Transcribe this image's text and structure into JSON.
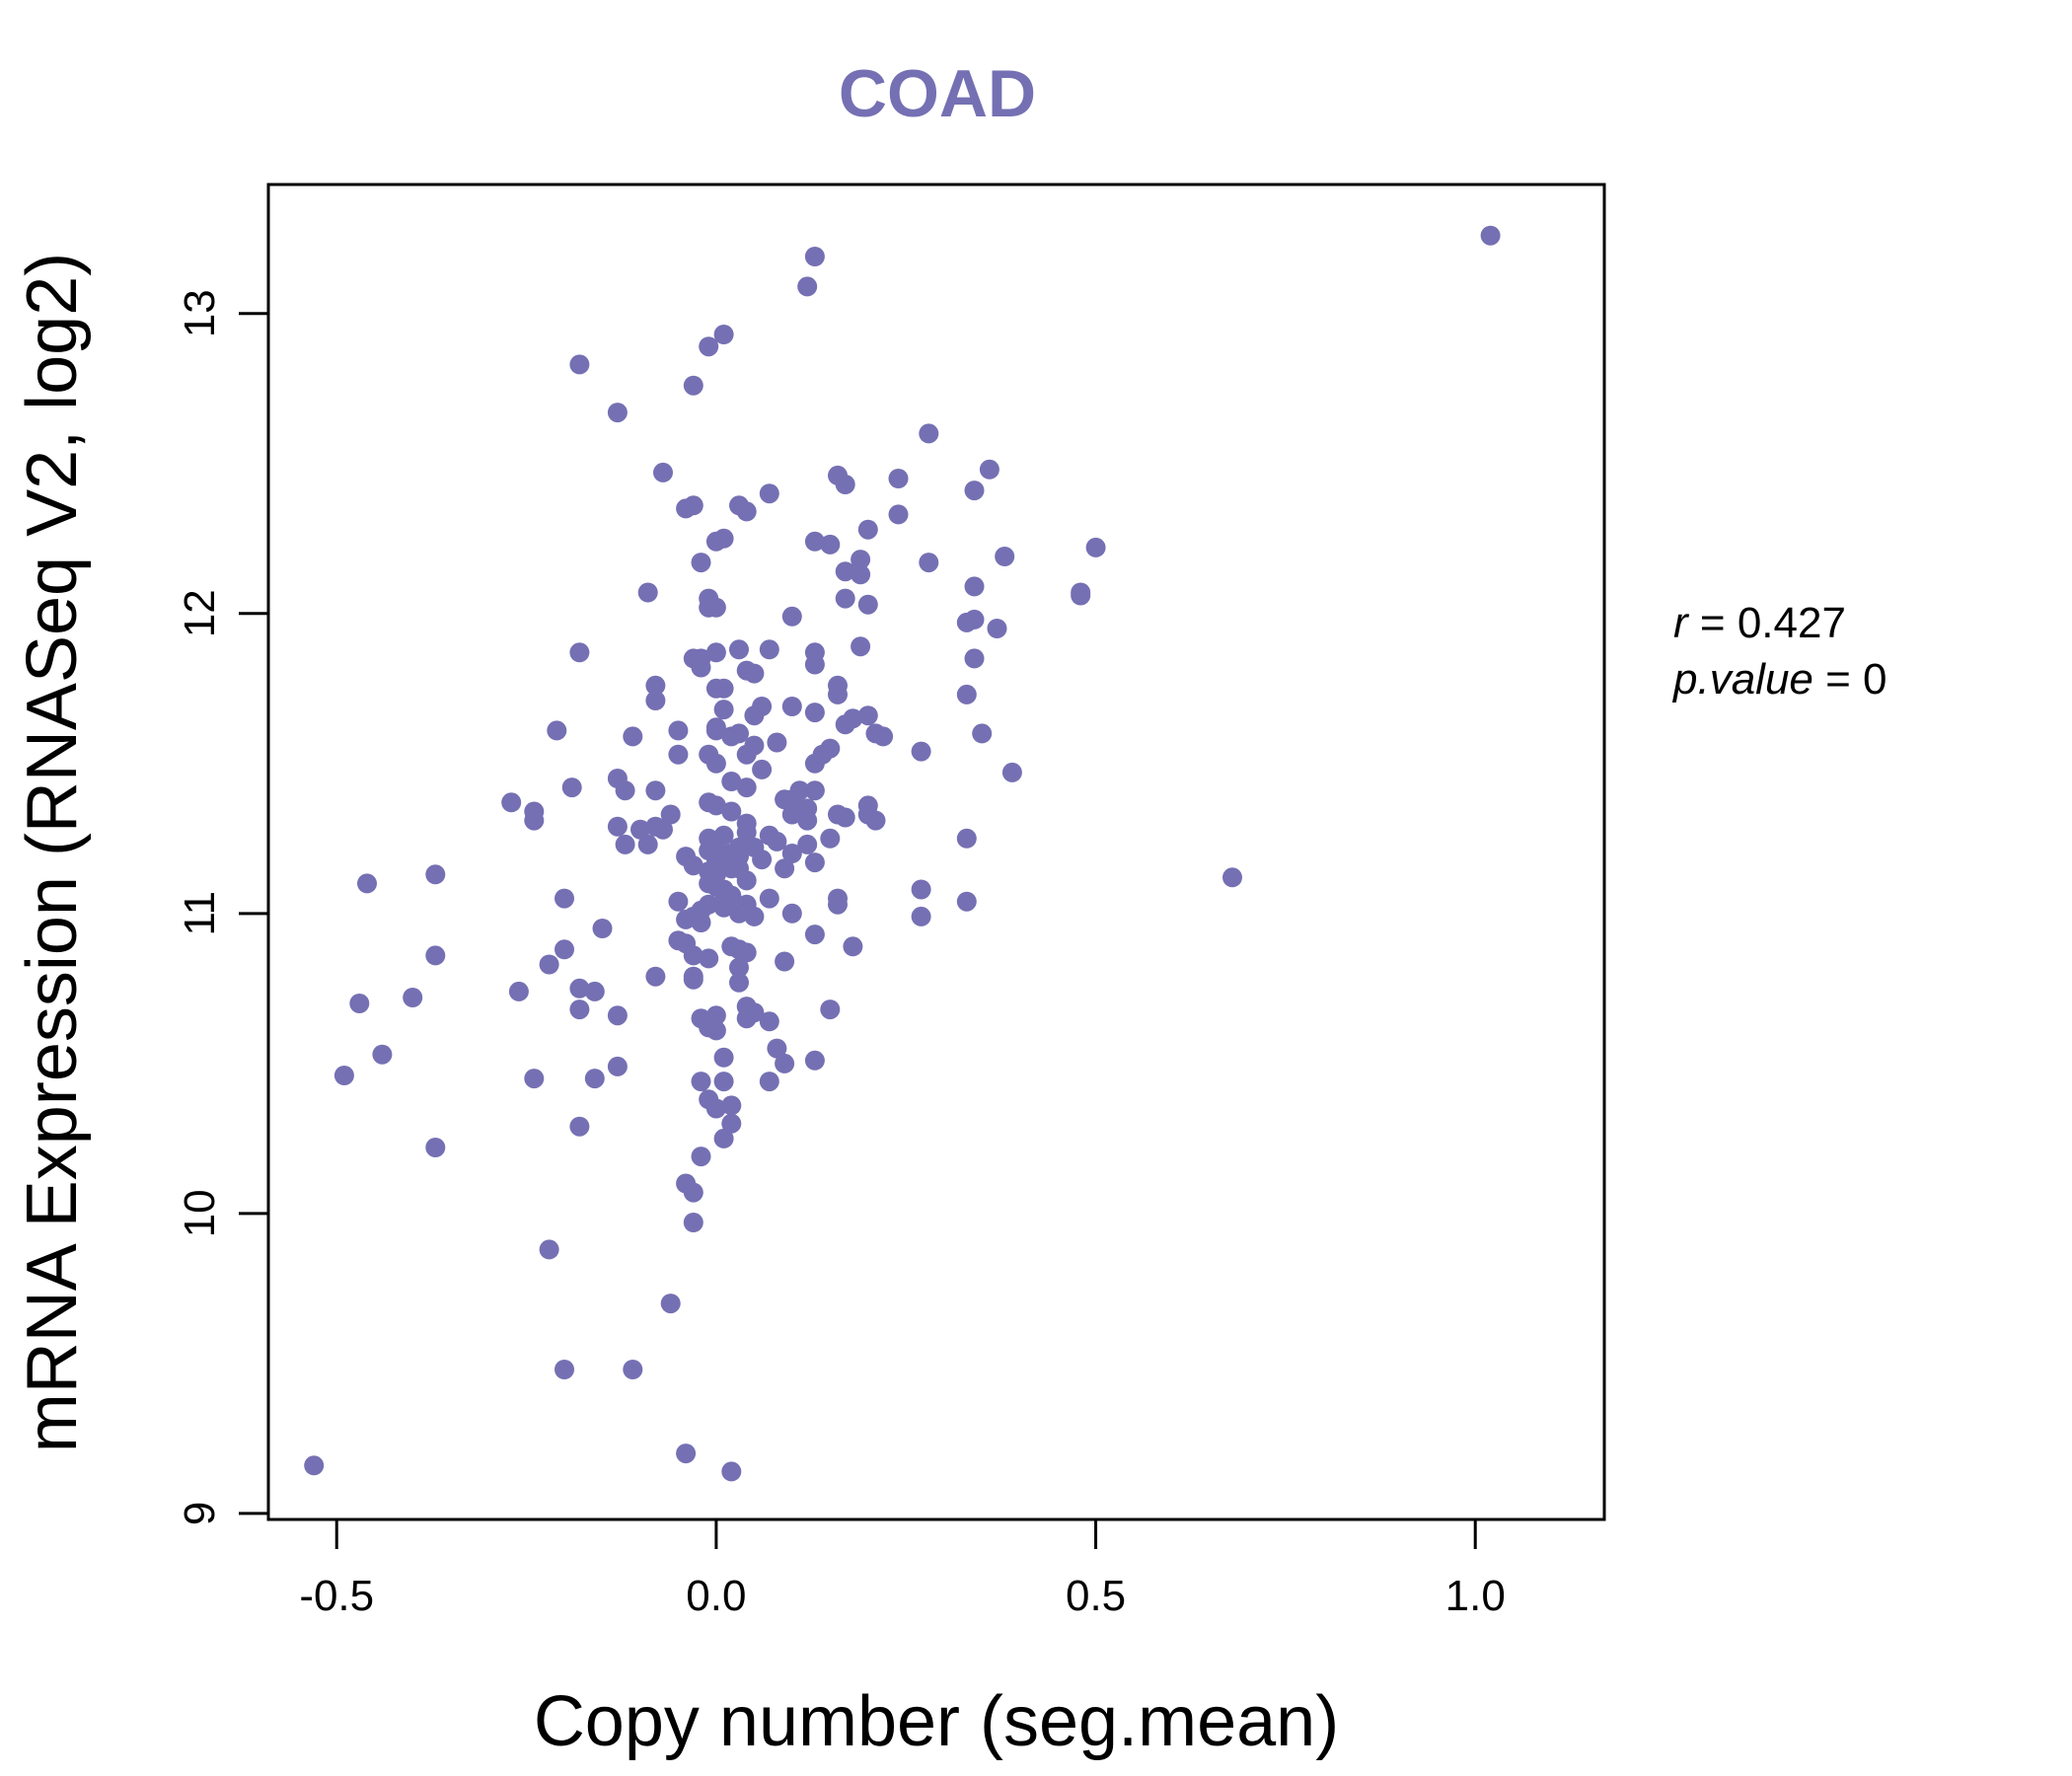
{
  "chart_data": {
    "type": "scatter",
    "title": "COAD",
    "xlabel": "Copy number (seg.mean)",
    "ylabel": "mRNA Expression (RNASeq V2, log2)",
    "xlim": [
      -0.59,
      1.17
    ],
    "ylim": [
      8.98,
      13.43
    ],
    "xticks": [
      -0.5,
      0.0,
      0.5,
      1.0
    ],
    "xtick_labels": [
      "-0.5",
      "0.0",
      "0.5",
      "1.0"
    ],
    "yticks": [
      9,
      10,
      11,
      12,
      13
    ],
    "ytick_labels": [
      "9",
      "10",
      "11",
      "12",
      "13"
    ],
    "grid": false,
    "legend": "none",
    "stats": {
      "r_label": "r",
      "r_value": "0.427",
      "p_label": "p.value",
      "p_value": "0"
    },
    "colors": {
      "points": "#7570b3",
      "title": "#7570b3"
    },
    "points": [
      [
        1.02,
        13.26
      ],
      [
        0.13,
        13.19
      ],
      [
        0.12,
        13.09
      ],
      [
        0.01,
        12.93
      ],
      [
        -0.01,
        12.89
      ],
      [
        -0.18,
        12.83
      ],
      [
        -0.03,
        12.76
      ],
      [
        -0.13,
        12.67
      ],
      [
        0.28,
        12.6
      ],
      [
        -0.07,
        12.47
      ],
      [
        0.36,
        12.48
      ],
      [
        0.16,
        12.46
      ],
      [
        0.24,
        12.45
      ],
      [
        0.17,
        12.43
      ],
      [
        0.34,
        12.41
      ],
      [
        0.07,
        12.4
      ],
      [
        -0.04,
        12.35
      ],
      [
        -0.03,
        12.36
      ],
      [
        0.03,
        12.36
      ],
      [
        0.04,
        12.34
      ],
      [
        0.24,
        12.33
      ],
      [
        0.2,
        12.28
      ],
      [
        0.01,
        12.25
      ],
      [
        0.0,
        12.24
      ],
      [
        0.13,
        12.24
      ],
      [
        0.15,
        12.23
      ],
      [
        0.5,
        12.22
      ],
      [
        0.38,
        12.19
      ],
      [
        0.19,
        12.18
      ],
      [
        -0.02,
        12.17
      ],
      [
        0.28,
        12.17
      ],
      [
        0.17,
        12.14
      ],
      [
        0.19,
        12.13
      ],
      [
        0.34,
        12.09
      ],
      [
        -0.09,
        12.07
      ],
      [
        0.48,
        12.07
      ],
      [
        0.48,
        12.06
      ],
      [
        -0.01,
        12.05
      ],
      [
        0.17,
        12.05
      ],
      [
        0.2,
        12.03
      ],
      [
        -0.01,
        12.02
      ],
      [
        0.0,
        12.02
      ],
      [
        0.1,
        11.99
      ],
      [
        0.34,
        11.98
      ],
      [
        0.33,
        11.97
      ],
      [
        0.37,
        11.95
      ],
      [
        0.19,
        11.89
      ],
      [
        0.03,
        11.88
      ],
      [
        0.07,
        11.88
      ],
      [
        -0.18,
        11.87
      ],
      [
        0.0,
        11.87
      ],
      [
        0.13,
        11.87
      ],
      [
        -0.03,
        11.85
      ],
      [
        -0.02,
        11.85
      ],
      [
        0.34,
        11.85
      ],
      [
        0.13,
        11.83
      ],
      [
        -0.02,
        11.82
      ],
      [
        0.04,
        11.81
      ],
      [
        0.05,
        11.8
      ],
      [
        0.16,
        11.76
      ],
      [
        -0.08,
        11.76
      ],
      [
        0.0,
        11.75
      ],
      [
        0.01,
        11.75
      ],
      [
        0.16,
        11.73
      ],
      [
        0.33,
        11.73
      ],
      [
        -0.08,
        11.71
      ],
      [
        0.06,
        11.69
      ],
      [
        0.1,
        11.69
      ],
      [
        0.01,
        11.68
      ],
      [
        0.13,
        11.67
      ],
      [
        0.05,
        11.66
      ],
      [
        0.2,
        11.66
      ],
      [
        0.18,
        11.65
      ],
      [
        0.17,
        11.63
      ],
      [
        0.0,
        11.62
      ],
      [
        -0.05,
        11.61
      ],
      [
        0.0,
        11.61
      ],
      [
        -0.21,
        11.61
      ],
      [
        0.03,
        11.6
      ],
      [
        0.21,
        11.6
      ],
      [
        0.35,
        11.6
      ],
      [
        0.02,
        11.59
      ],
      [
        -0.11,
        11.59
      ],
      [
        0.22,
        11.59
      ],
      [
        0.08,
        11.57
      ],
      [
        0.05,
        11.56
      ],
      [
        0.15,
        11.55
      ],
      [
        0.14,
        11.53
      ],
      [
        0.27,
        11.54
      ],
      [
        -0.01,
        11.53
      ],
      [
        -0.05,
        11.53
      ],
      [
        0.04,
        11.53
      ],
      [
        0.0,
        11.5
      ],
      [
        0.13,
        11.5
      ],
      [
        0.06,
        11.48
      ],
      [
        0.39,
        11.47
      ],
      [
        -0.13,
        11.45
      ],
      [
        0.02,
        11.44
      ],
      [
        -0.12,
        11.41
      ],
      [
        -0.08,
        11.41
      ],
      [
        -0.19,
        11.42
      ],
      [
        0.04,
        11.42
      ],
      [
        0.11,
        11.41
      ],
      [
        0.13,
        11.41
      ],
      [
        0.09,
        11.38
      ],
      [
        0.1,
        11.38
      ],
      [
        -0.27,
        11.37
      ],
      [
        -0.01,
        11.37
      ],
      [
        0.2,
        11.36
      ],
      [
        0.0,
        11.36
      ],
      [
        0.12,
        11.35
      ],
      [
        0.02,
        11.34
      ],
      [
        -0.24,
        11.34
      ],
      [
        0.16,
        11.33
      ],
      [
        -0.06,
        11.33
      ],
      [
        0.1,
        11.33
      ],
      [
        0.17,
        11.32
      ],
      [
        0.2,
        11.33
      ],
      [
        0.12,
        11.31
      ],
      [
        0.21,
        11.31
      ],
      [
        -0.24,
        11.31
      ],
      [
        0.04,
        11.3
      ],
      [
        -0.13,
        11.29
      ],
      [
        -0.08,
        11.29
      ],
      [
        -0.07,
        11.28
      ],
      [
        -0.1,
        11.28
      ],
      [
        0.04,
        11.27
      ],
      [
        0.07,
        11.26
      ],
      [
        0.01,
        11.26
      ],
      [
        -0.01,
        11.25
      ],
      [
        0.15,
        11.25
      ],
      [
        0.33,
        11.25
      ],
      [
        0.08,
        11.24
      ],
      [
        0.12,
        11.23
      ],
      [
        -0.12,
        11.23
      ],
      [
        -0.09,
        11.23
      ],
      [
        0.03,
        11.22
      ],
      [
        0.0,
        11.22
      ],
      [
        0.05,
        11.22
      ],
      [
        -0.01,
        11.21
      ],
      [
        0.02,
        11.2
      ],
      [
        0.1,
        11.2
      ],
      [
        0.03,
        11.19
      ],
      [
        -0.04,
        11.19
      ],
      [
        0.06,
        11.18
      ],
      [
        0.0,
        11.18
      ],
      [
        0.01,
        11.17
      ],
      [
        0.13,
        11.17
      ],
      [
        -0.03,
        11.16
      ],
      [
        0.02,
        11.15
      ],
      [
        0.09,
        11.15
      ],
      [
        0.03,
        11.15
      ],
      [
        -0.01,
        11.14
      ],
      [
        0.0,
        11.13
      ],
      [
        -0.37,
        11.13
      ],
      [
        0.68,
        11.12
      ],
      [
        -0.46,
        11.1
      ],
      [
        0.04,
        11.11
      ],
      [
        -0.01,
        11.1
      ],
      [
        0.0,
        11.09
      ],
      [
        0.01,
        11.08
      ],
      [
        0.27,
        11.08
      ],
      [
        0.01,
        11.07
      ],
      [
        0.02,
        11.06
      ],
      [
        0.16,
        11.05
      ],
      [
        -0.2,
        11.05
      ],
      [
        0.07,
        11.05
      ],
      [
        -0.05,
        11.04
      ],
      [
        0.33,
        11.04
      ],
      [
        0.04,
        11.03
      ],
      [
        -0.01,
        11.03
      ],
      [
        0.16,
        11.03
      ],
      [
        0.01,
        11.02
      ],
      [
        -0.02,
        11.01
      ],
      [
        0.03,
        11.0
      ],
      [
        0.1,
        11.0
      ],
      [
        -0.03,
        10.99
      ],
      [
        0.27,
        10.99
      ],
      [
        0.05,
        10.99
      ],
      [
        -0.04,
        10.98
      ],
      [
        -0.02,
        10.97
      ],
      [
        -0.15,
        10.95
      ],
      [
        0.13,
        10.93
      ],
      [
        -0.05,
        10.91
      ],
      [
        -0.04,
        10.9
      ],
      [
        0.18,
        10.89
      ],
      [
        0.02,
        10.89
      ],
      [
        0.03,
        10.88
      ],
      [
        -0.2,
        10.88
      ],
      [
        0.04,
        10.87
      ],
      [
        -0.03,
        10.86
      ],
      [
        -0.37,
        10.86
      ],
      [
        -0.01,
        10.85
      ],
      [
        0.09,
        10.84
      ],
      [
        -0.22,
        10.83
      ],
      [
        0.03,
        10.82
      ],
      [
        -0.08,
        10.79
      ],
      [
        -0.03,
        10.79
      ],
      [
        -0.03,
        10.78
      ],
      [
        0.03,
        10.77
      ],
      [
        -0.18,
        10.75
      ],
      [
        -0.16,
        10.74
      ],
      [
        -0.26,
        10.74
      ],
      [
        -0.4,
        10.72
      ],
      [
        -0.47,
        10.7
      ],
      [
        0.04,
        10.69
      ],
      [
        0.15,
        10.68
      ],
      [
        -0.18,
        10.68
      ],
      [
        0.05,
        10.67
      ],
      [
        -0.13,
        10.66
      ],
      [
        0.0,
        10.66
      ],
      [
        -0.02,
        10.65
      ],
      [
        0.04,
        10.65
      ],
      [
        0.07,
        10.64
      ],
      [
        -0.01,
        10.62
      ],
      [
        0.0,
        10.61
      ],
      [
        0.08,
        10.55
      ],
      [
        -0.44,
        10.53
      ],
      [
        0.01,
        10.52
      ],
      [
        0.13,
        10.51
      ],
      [
        0.09,
        10.5
      ],
      [
        -0.13,
        10.49
      ],
      [
        -0.49,
        10.46
      ],
      [
        -0.24,
        10.45
      ],
      [
        -0.16,
        10.45
      ],
      [
        0.01,
        10.44
      ],
      [
        0.07,
        10.44
      ],
      [
        -0.02,
        10.44
      ],
      [
        -0.01,
        10.38
      ],
      [
        0.02,
        10.36
      ],
      [
        0.0,
        10.35
      ],
      [
        0.02,
        10.3
      ],
      [
        -0.18,
        10.29
      ],
      [
        0.01,
        10.25
      ],
      [
        -0.37,
        10.22
      ],
      [
        -0.02,
        10.19
      ],
      [
        -0.04,
        10.1
      ],
      [
        -0.03,
        10.07
      ],
      [
        -0.03,
        9.97
      ],
      [
        -0.22,
        9.88
      ],
      [
        -0.06,
        9.7
      ],
      [
        -0.2,
        9.48
      ],
      [
        -0.11,
        9.48
      ],
      [
        -0.04,
        9.2
      ],
      [
        -0.53,
        9.16
      ],
      [
        0.02,
        9.14
      ]
    ]
  }
}
